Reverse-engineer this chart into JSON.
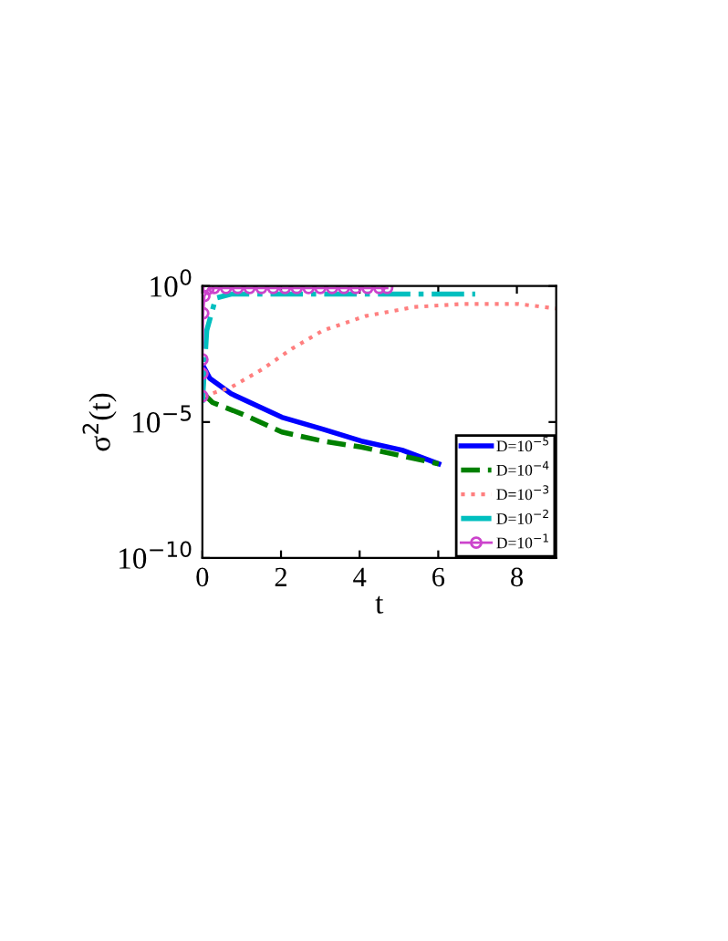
{
  "chart_data": {
    "type": "line",
    "xlabel": "t",
    "ylabel": "σ$^{2}$(t)",
    "log": "y",
    "xlim": [
      0,
      9
    ],
    "xticks": [
      0,
      2,
      4,
      6,
      8
    ],
    "ylim": [
      1e-10,
      1
    ],
    "yticks": [
      {
        "value": 1e-10,
        "label": "10$^{−10}$"
      },
      {
        "value": 1e-05,
        "label": "10$^{−5}$"
      },
      {
        "value": 1,
        "label": "10$^{0}$"
      }
    ],
    "legend": "bottom right",
    "grid": false,
    "series": [
      {
        "name": "D=10$^{−5}$",
        "color": "#0000ff",
        "line_style": "solid",
        "marker": "none",
        "x": [
          0.03,
          0.19,
          0.73,
          2.02,
          3.06,
          4.04,
          5.08,
          6.01
        ],
        "values": [
          0.0011,
          0.0004,
          0.00011,
          1.5e-05,
          5.5e-06,
          2e-06,
          9.3e-07,
          2.9e-07
        ]
      },
      {
        "name": "D=10$^{−4}$",
        "color": "#008000",
        "line_style": "dashed",
        "marker": "none",
        "x": [
          0.03,
          0.26,
          1.04,
          2.02,
          3.06,
          4.04,
          6.01
        ],
        "values": [
          0.00011,
          5.2e-05,
          1.9e-05,
          4.3e-06,
          2e-06,
          1.2e-06,
          2.9e-07
        ]
      },
      {
        "name": "D=10$^{−3}$",
        "color": "#ff7f7f",
        "line_style": "dotted",
        "marker": "none",
        "x": [
          0.03,
          0.73,
          1.51,
          2.28,
          3.06,
          4.15,
          5.39,
          6.63,
          8.03,
          9.0
        ],
        "values": [
          8.9e-05,
          0.00019,
          0.00085,
          0.005,
          0.023,
          0.079,
          0.17,
          0.22,
          0.22,
          0.15
        ]
      },
      {
        "name": "D=10$^{−2}$",
        "color": "#00bfbf",
        "line_style": "dashdot",
        "marker": "none",
        "x": [
          0.0,
          0.11,
          0.34,
          0.73,
          6.94
        ],
        "values": [
          5.2e-05,
          0.023,
          0.36,
          0.51,
          0.51
        ]
      },
      {
        "name": "D=10$^{−1}$",
        "color": "#cc44cc",
        "line_style": "solid",
        "marker": "circle",
        "x": [
          0.0,
          0.0,
          0.0,
          0.02,
          0.05,
          0.15,
          0.3,
          0.6,
          0.9,
          1.2,
          1.5,
          1.8,
          2.1,
          2.4,
          2.7,
          3.0,
          3.3,
          3.6,
          3.9,
          4.2,
          4.5,
          4.7
        ],
        "values": [
          8.9e-05,
          0.0006,
          0.002,
          0.1,
          0.43,
          0.78,
          0.85,
          0.85,
          0.85,
          0.85,
          0.85,
          0.85,
          0.85,
          0.85,
          0.85,
          0.85,
          0.85,
          0.85,
          0.85,
          0.85,
          0.85,
          0.85
        ]
      }
    ]
  }
}
